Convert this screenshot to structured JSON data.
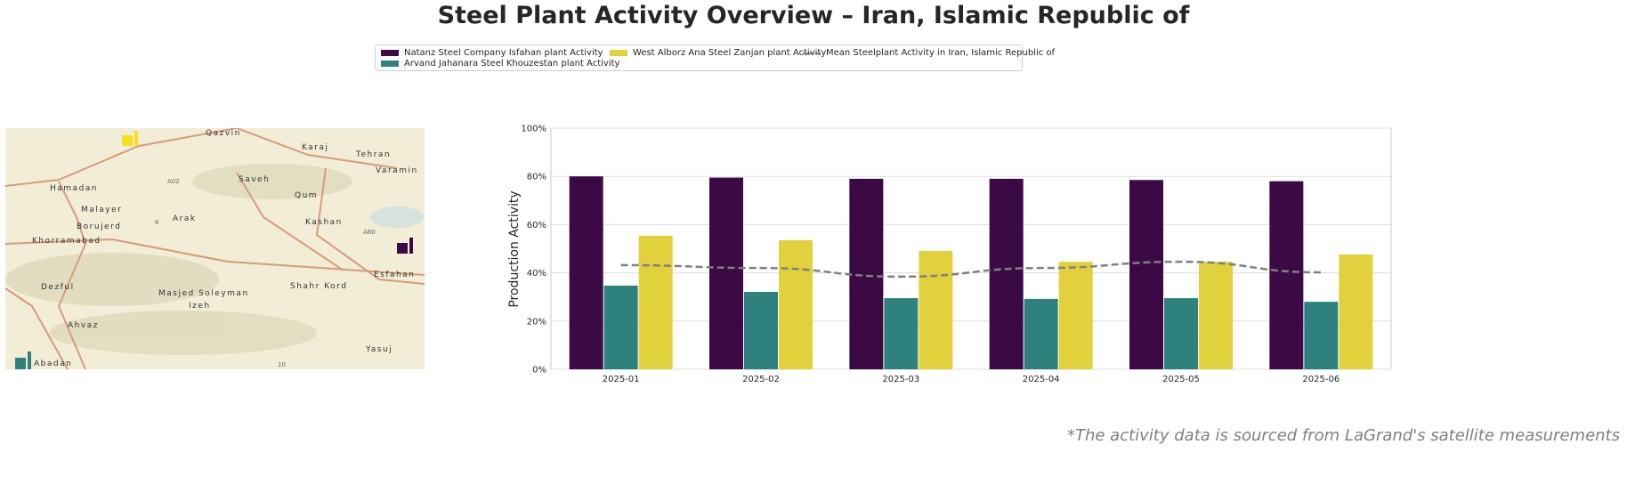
{
  "title": "Steel Plant Activity Overview – Iran, Islamic Republic of",
  "footnote": "*The activity data is sourced from LaGrand's satellite measurements",
  "map": {
    "labels": [
      "Qazvin",
      "Karaj",
      "Tehran",
      "Varamin",
      "Hamadan",
      "Saveh",
      "Qum",
      "Malayer",
      "Arak",
      "Borujerd",
      "Kashan",
      "Khorramabad",
      "Esfahan",
      "Dezful",
      "Masjed Soleyman",
      "Shahr Kord",
      "Izeh",
      "Ahvaz",
      "Yasuj",
      "Abadan"
    ],
    "road_shields": [
      "A02",
      "6",
      "A80",
      "10"
    ]
  },
  "chart_data": {
    "type": "bar",
    "categories": [
      "2025-01",
      "2025-02",
      "2025-03",
      "2025-04",
      "2025-05",
      "2025-06"
    ],
    "series": [
      {
        "name": "Natanz Steel Company Isfahan plant Activity",
        "color": "#3b0a45",
        "values": [
          80,
          79.5,
          79,
          79,
          78.5,
          78
        ]
      },
      {
        "name": "Arvand Jahanara Steel Khouzestan plant Activity",
        "color": "#2e817c",
        "values": [
          34.7,
          32.1,
          29.5,
          29.2,
          29.5,
          28
        ]
      },
      {
        "name": "West Alborz Ana Steel Zanjan plant Activity",
        "color": "#e1d13c",
        "values": [
          55.4,
          53.5,
          49.1,
          44.6,
          44.6,
          47.6
        ]
      }
    ],
    "line": {
      "name": "Mean Steelplant Activity in Iran, Islamic Republic of",
      "color": "#808080",
      "values": [
        43.2,
        42,
        38.4,
        42,
        44.6,
        40.2
      ]
    },
    "ylabel": "Production Activity",
    "xlabel": "",
    "ylim": [
      0,
      100
    ],
    "yticks": [
      "0%",
      "20%",
      "40%",
      "60%",
      "80%",
      "100%"
    ],
    "grid": true,
    "legend": "top-center"
  }
}
